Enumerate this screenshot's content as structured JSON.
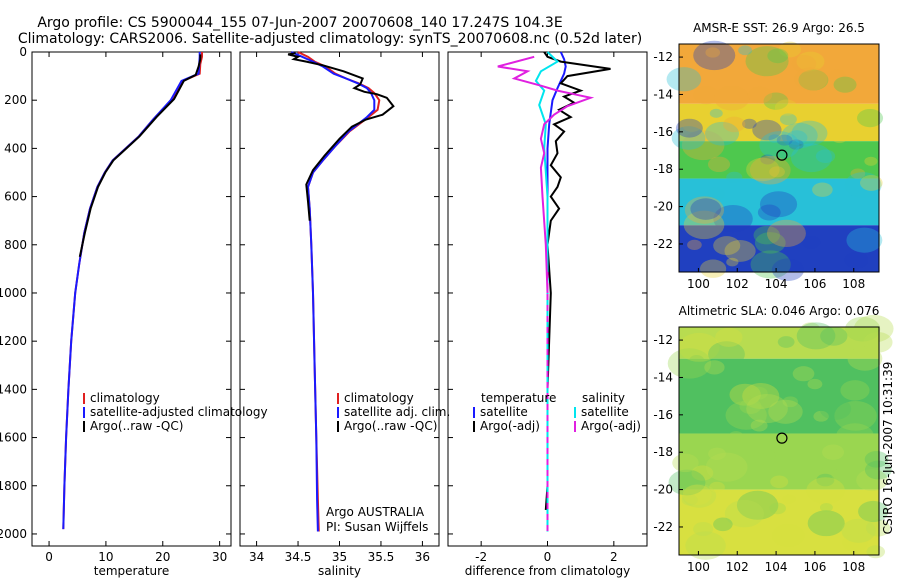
{
  "header": {
    "title_line1": "Argo profile: CS 5900044_155 07-Jun-2007 20070608_140 17.247S 104.3E",
    "title_line2": "Climatology: CARS2006. Satellite-adjusted climatology: synTS_20070608.nc (0.52d later)"
  },
  "side_label": "CSIRO 16-Jun-2007 10:31:39",
  "colors": {
    "climatology": "#e02020",
    "satellite": "#1a1aff",
    "argo": "#000000",
    "sat_cyan": "#00e5ee",
    "argo_magenta": "#e020e0"
  },
  "chart_data": [
    {
      "id": "temperature",
      "type": "line",
      "xlabel": "temperature",
      "ylabel": "",
      "xlim": [
        -3,
        32
      ],
      "ylim": [
        2050,
        0
      ],
      "xticks": [
        0,
        10,
        20,
        30
      ],
      "yticks": [
        0,
        200,
        400,
        600,
        800,
        1000,
        1200,
        1400,
        1600,
        1800,
        2000
      ],
      "legend": {
        "position": "lower-right",
        "entries": [
          "climatology",
          "satellite-adjusted climatology",
          "Argo(..raw -QC)"
        ]
      },
      "series": [
        {
          "name": "climatology",
          "color": "climatology",
          "x": [
            26.9,
            26.9,
            26.6,
            26.5,
            23.5,
            21.5,
            18.3,
            15.8,
            13.5,
            11.2,
            9.8,
            8.5,
            7.2,
            6.2,
            5.3,
            4.6,
            3.9,
            3.4,
            3.0,
            2.7,
            2.5
          ],
          "y": [
            0,
            20,
            50,
            90,
            120,
            200,
            280,
            350,
            400,
            450,
            500,
            560,
            650,
            750,
            880,
            1000,
            1200,
            1400,
            1600,
            1800,
            1980
          ]
        },
        {
          "name": "satellite-adjusted climatology",
          "color": "satellite",
          "x": [
            26.5,
            26.5,
            26.4,
            26.3,
            23.3,
            21.4,
            18.3,
            15.8,
            13.5,
            11.2,
            9.8,
            8.5,
            7.2,
            6.2,
            5.3,
            4.6,
            3.9,
            3.4,
            3.0,
            2.7,
            2.5
          ],
          "y": [
            0,
            20,
            50,
            90,
            120,
            200,
            280,
            350,
            400,
            450,
            500,
            560,
            650,
            750,
            880,
            1000,
            1200,
            1400,
            1600,
            1800,
            1980
          ]
        },
        {
          "name": "Argo(..raw -QC)",
          "color": "argo",
          "x": [
            26.6,
            26.6,
            26.3,
            25.8,
            23.7,
            22.0,
            18.9,
            15.9,
            13.6,
            11.3,
            9.9,
            8.6,
            7.3,
            6.3,
            5.4
          ],
          "y": [
            10,
            30,
            60,
            95,
            120,
            195,
            270,
            350,
            400,
            450,
            500,
            560,
            650,
            750,
            850
          ]
        }
      ]
    },
    {
      "id": "salinity",
      "type": "line",
      "xlabel": "salinity",
      "ylabel": "",
      "xlim": [
        33.8,
        36.2
      ],
      "ylim": [
        2050,
        0
      ],
      "xticks": [
        34,
        34.5,
        35,
        35.5,
        36
      ],
      "yticks": [
        0,
        200,
        400,
        600,
        800,
        1000,
        1200,
        1400,
        1600,
        1800,
        2000
      ],
      "legend": {
        "position": "lower-right",
        "entries": [
          "climatology",
          "satellite adj. clim.",
          "Argo(..raw -QC)"
        ]
      },
      "annotation": {
        "line1": "Argo AUSTRALIA",
        "line2": "PI: Susan Wijffels"
      },
      "series": [
        {
          "name": "climatology",
          "color": "climatology",
          "x": [
            34.5,
            34.62,
            34.7,
            34.83,
            34.95,
            35.08,
            35.23,
            35.35,
            35.42,
            35.48,
            35.46,
            35.35,
            35.12,
            34.95,
            34.8,
            34.68,
            34.62,
            34.64,
            34.66,
            34.68,
            34.7,
            34.72,
            34.74,
            34.75
          ],
          "y": [
            0,
            20,
            40,
            60,
            90,
            110,
            130,
            150,
            170,
            200,
            240,
            270,
            330,
            390,
            450,
            500,
            560,
            650,
            800,
            1000,
            1300,
            1600,
            1860,
            1990
          ]
        },
        {
          "name": "satellite adj. clim.",
          "color": "satellite",
          "x": [
            34.42,
            34.55,
            34.68,
            34.8,
            34.93,
            35.08,
            35.22,
            35.33,
            35.38,
            35.42,
            35.42,
            35.33,
            35.11,
            34.95,
            34.8,
            34.68,
            34.62,
            34.64,
            34.66,
            34.68,
            34.7,
            34.72,
            34.73,
            34.74
          ],
          "y": [
            0,
            20,
            40,
            60,
            90,
            110,
            130,
            150,
            170,
            200,
            240,
            270,
            330,
            390,
            450,
            500,
            560,
            650,
            800,
            1000,
            1300,
            1600,
            1860,
            1990
          ]
        },
        {
          "name": "Argo(..raw -QC)",
          "color": "argo",
          "x": [
            34.47,
            34.38,
            34.5,
            34.45,
            34.6,
            34.8,
            35.05,
            35.28,
            35.25,
            35.18,
            35.3,
            35.45,
            35.57,
            35.65,
            35.52,
            35.32,
            35.15,
            35.0,
            34.82,
            34.68,
            34.6,
            34.62,
            34.64
          ],
          "y": [
            5,
            10,
            20,
            30,
            40,
            55,
            80,
            110,
            135,
            150,
            165,
            175,
            190,
            225,
            260,
            280,
            310,
            360,
            430,
            490,
            550,
            620,
            700
          ]
        }
      ]
    },
    {
      "id": "difference",
      "type": "line",
      "xlabel": "difference from climatology",
      "ylabel": "",
      "xlim": [
        -3,
        3
      ],
      "ylim": [
        2050,
        0
      ],
      "xticks": [
        -2,
        0,
        2
      ],
      "yticks": [
        0,
        200,
        400,
        600,
        800,
        1000,
        1200,
        1400,
        1600,
        1800,
        2000
      ],
      "legend": {
        "position": "lower",
        "groups": [
          {
            "heading": "temperature",
            "entries": [
              "satellite",
              "Argo(-adj)"
            ]
          },
          {
            "heading": "salinity",
            "entries": [
              "satellite",
              "Argo(-adj)"
            ]
          }
        ]
      },
      "series": [
        {
          "name": "temperature satellite",
          "color": "satellite",
          "x": [
            0.4,
            0.5,
            0.55,
            0.5,
            0.4,
            0.3,
            0.15,
            0.05,
            0.0,
            0.0,
            0.0,
            0.0
          ],
          "y": [
            0,
            30,
            60,
            90,
            120,
            150,
            200,
            300,
            400,
            600,
            1000,
            1980
          ]
        },
        {
          "name": "temperature Argo(-adj)",
          "color": "argo",
          "x": [
            -0.1,
            0.0,
            0.4,
            1.9,
            0.6,
            0.4,
            1.0,
            0.5,
            0.8,
            0.35,
            0.7,
            0.2,
            0.5,
            0.25,
            0.3,
            0.1,
            0.4,
            0.3,
            0.1,
            0.35,
            0.1,
            0.0,
            0.1,
            0.0,
            0.0,
            -0.05
          ],
          "y": [
            0,
            20,
            40,
            70,
            100,
            130,
            160,
            185,
            210,
            240,
            270,
            300,
            330,
            370,
            420,
            470,
            520,
            560,
            600,
            650,
            700,
            800,
            1000,
            1400,
            1800,
            1900
          ]
        },
        {
          "name": "salinity satellite",
          "color": "sat_cyan",
          "x": [
            0.0,
            0.3,
            -0.2,
            -0.35,
            -0.1,
            -0.25,
            -0.05,
            -0.1,
            0.0,
            0.0,
            0.0
          ],
          "y": [
            0,
            40,
            80,
            120,
            160,
            220,
            300,
            400,
            600,
            1000,
            1990
          ]
        },
        {
          "name": "salinity Argo(-adj)",
          "color": "argo_magenta",
          "x": [
            -0.4,
            -1.5,
            -0.6,
            -1.0,
            -0.2,
            0.3,
            0.8,
            1.3,
            0.6,
            0.2,
            -0.1,
            -0.2,
            -0.1,
            -0.2,
            -0.15,
            -0.05,
            0.0
          ],
          "y": [
            20,
            60,
            80,
            110,
            140,
            160,
            175,
            190,
            225,
            260,
            300,
            360,
            420,
            480,
            600,
            800,
            1000
          ]
        }
      ]
    },
    {
      "id": "sst_map",
      "type": "heatmap",
      "title": "AMSR-E SST: 26.9 Argo: 26.5",
      "xlim": [
        99,
        109.3
      ],
      "ylim": [
        -23.5,
        -11.3
      ],
      "xticks": [
        100,
        102,
        104,
        106,
        108
      ],
      "yticks": [
        -12,
        -14,
        -16,
        -18,
        -20,
        -22
      ],
      "marker": {
        "lon": 104.3,
        "lat": -17.247
      },
      "color_bands": [
        {
          "lat_from": -11.3,
          "lat_to": -14.5,
          "color": "#f2a83a"
        },
        {
          "lat_from": -14.5,
          "lat_to": -16.5,
          "color": "#e8d030"
        },
        {
          "lat_from": -16.5,
          "lat_to": -18.5,
          "color": "#4ec84e"
        },
        {
          "lat_from": -18.5,
          "lat_to": -21.0,
          "color": "#28c0d8"
        },
        {
          "lat_from": -21.0,
          "lat_to": -23.5,
          "color": "#2040c0"
        }
      ]
    },
    {
      "id": "sla_map",
      "type": "heatmap",
      "title": "Altimetric SLA: 0.046 Argo: 0.076",
      "xlim": [
        99,
        109.3
      ],
      "ylim": [
        -23.5,
        -11.3
      ],
      "xticks": [
        100,
        102,
        104,
        106,
        108
      ],
      "yticks": [
        -12,
        -14,
        -16,
        -18,
        -20,
        -22
      ],
      "marker": {
        "lon": 104.3,
        "lat": -17.247
      },
      "color_bands": [
        {
          "lat_from": -11.3,
          "lat_to": -13.0,
          "color": "#b8dc50"
        },
        {
          "lat_from": -13.0,
          "lat_to": -17.0,
          "color": "#50c060"
        },
        {
          "lat_from": -17.0,
          "lat_to": -20.0,
          "color": "#9ad650"
        },
        {
          "lat_from": -20.0,
          "lat_to": -23.5,
          "color": "#d8e040"
        }
      ]
    }
  ]
}
